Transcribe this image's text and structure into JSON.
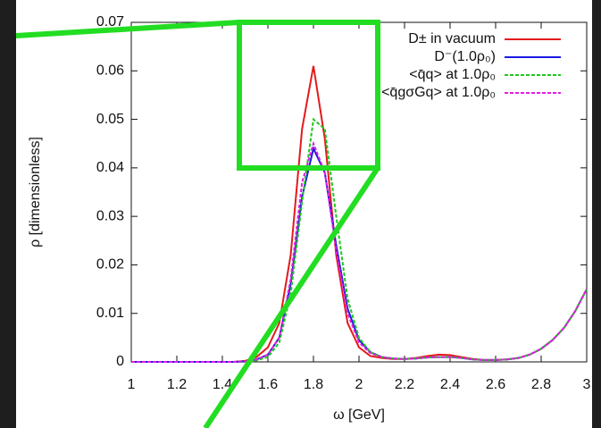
{
  "chart_data": {
    "type": "line",
    "xlabel": "ω [GeV]",
    "ylabel": "ρ [dimensionless]",
    "x": [
      1.0,
      1.05,
      1.1,
      1.15,
      1.2,
      1.25,
      1.3,
      1.35,
      1.4,
      1.45,
      1.5,
      1.55,
      1.6,
      1.65,
      1.7,
      1.75,
      1.8,
      1.85,
      1.9,
      1.95,
      2.0,
      2.05,
      2.1,
      2.15,
      2.2,
      2.25,
      2.3,
      2.35,
      2.4,
      2.45,
      2.5,
      2.55,
      2.6,
      2.65,
      2.7,
      2.75,
      2.8,
      2.85,
      2.9,
      2.95,
      3.0
    ],
    "series": [
      {
        "name": "D± in vacuum",
        "color": "#e41a1c",
        "linestyle": "solid",
        "values": [
          0,
          0,
          0,
          0,
          0,
          0,
          0,
          0,
          0,
          0,
          0.0002,
          0.001,
          0.003,
          0.008,
          0.022,
          0.048,
          0.061,
          0.046,
          0.022,
          0.008,
          0.003,
          0.0012,
          0.0008,
          0.0006,
          0.0006,
          0.0008,
          0.0012,
          0.0015,
          0.0014,
          0.001,
          0.0006,
          0.0004,
          0.0004,
          0.0005,
          0.0008,
          0.0015,
          0.0027,
          0.0045,
          0.007,
          0.0105,
          0.015
        ]
      },
      {
        "name": "D⁻(1.0ρ₀)",
        "color": "#1a1ae4",
        "linestyle": "solid",
        "values": [
          0,
          0,
          0,
          0,
          0,
          0,
          0,
          0,
          0,
          0,
          0.0001,
          0.0005,
          0.0015,
          0.005,
          0.016,
          0.034,
          0.044,
          0.039,
          0.024,
          0.011,
          0.0045,
          0.002,
          0.001,
          0.0007,
          0.0006,
          0.0007,
          0.0009,
          0.001,
          0.001,
          0.0008,
          0.0005,
          0.0004,
          0.0004,
          0.0005,
          0.0008,
          0.0015,
          0.0027,
          0.0045,
          0.007,
          0.0105,
          0.015
        ]
      },
      {
        "name": "<q̄q> at 1.0ρ₀",
        "color": "#1ec81e",
        "linestyle": "dashed",
        "values": [
          0,
          0,
          0,
          0,
          0,
          0,
          0,
          0,
          0,
          0,
          0,
          0.0003,
          0.001,
          0.004,
          0.014,
          0.033,
          0.05,
          0.048,
          0.03,
          0.013,
          0.005,
          0.002,
          0.001,
          0.0007,
          0.0006,
          0.0007,
          0.0009,
          0.001,
          0.001,
          0.0008,
          0.0005,
          0.0004,
          0.0004,
          0.0005,
          0.0008,
          0.0015,
          0.0027,
          0.0045,
          0.007,
          0.0105,
          0.015
        ]
      },
      {
        "name": "<q̄gσGq> at 1.0ρ₀",
        "color": "#e01ee0",
        "linestyle": "dashed",
        "values": [
          0,
          0,
          0,
          0,
          0,
          0,
          0,
          0,
          0,
          0,
          0.0001,
          0.0005,
          0.0015,
          0.005,
          0.017,
          0.037,
          0.045,
          0.039,
          0.023,
          0.01,
          0.004,
          0.0018,
          0.001,
          0.0007,
          0.0006,
          0.0007,
          0.0009,
          0.001,
          0.001,
          0.0008,
          0.0005,
          0.0004,
          0.0004,
          0.0005,
          0.0008,
          0.0015,
          0.0027,
          0.0045,
          0.007,
          0.0105,
          0.015
        ]
      }
    ],
    "xlim": [
      1,
      3
    ],
    "xticks": [
      1,
      1.2,
      1.4,
      1.6,
      1.8,
      2,
      2.2,
      2.4,
      2.6,
      2.8,
      3
    ],
    "ylim": [
      0,
      0.07
    ],
    "yticks": [
      0,
      0.01,
      0.02,
      0.03,
      0.04,
      0.05,
      0.06,
      0.07
    ],
    "legend": "upper right"
  }
}
